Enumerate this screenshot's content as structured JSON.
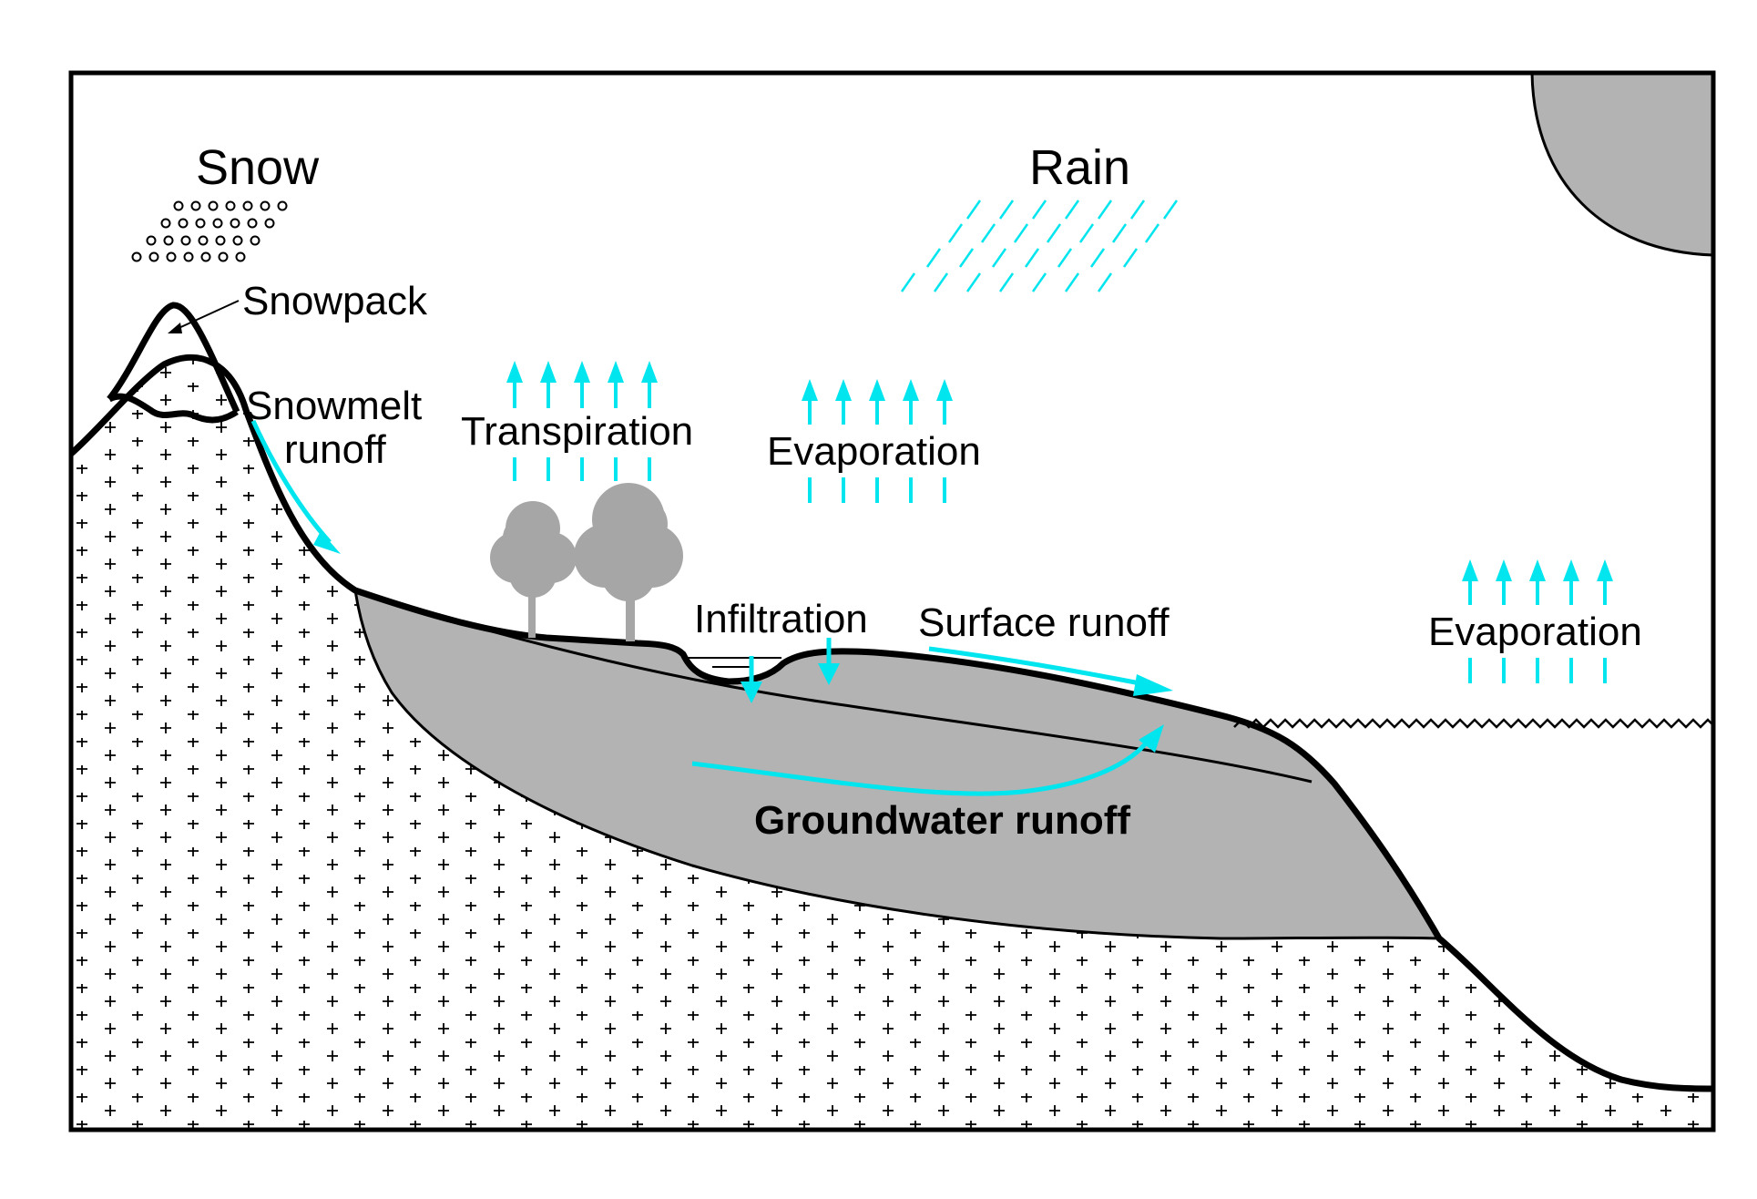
{
  "labels": {
    "snow": "Snow",
    "rain": "Rain",
    "snowpack": "Snowpack",
    "snowmelt_line1": "Snowmelt",
    "snowmelt_line2": "runoff",
    "transpiration": "Transpiration",
    "evaporation_land": "Evaporation",
    "evaporation_sea": "Evaporation",
    "infiltration": "Infiltration",
    "surface_runoff": "Surface runoff",
    "groundwater_runoff": "Groundwater runoff"
  },
  "colors": {
    "water_arrow": "#00e5ee",
    "aquifer": "#b3b3b3",
    "sun": "#b3b3b3",
    "trees": "#a6a6a6",
    "outline": "#000000",
    "background": "#ffffff"
  },
  "icons": {
    "snow": "snowflake-circles",
    "rain": "rain-streaks",
    "sun": "sun-disc",
    "trees": "tree-silhouettes",
    "bedrock": "plus-pattern",
    "sea_surface": "wave-line"
  }
}
